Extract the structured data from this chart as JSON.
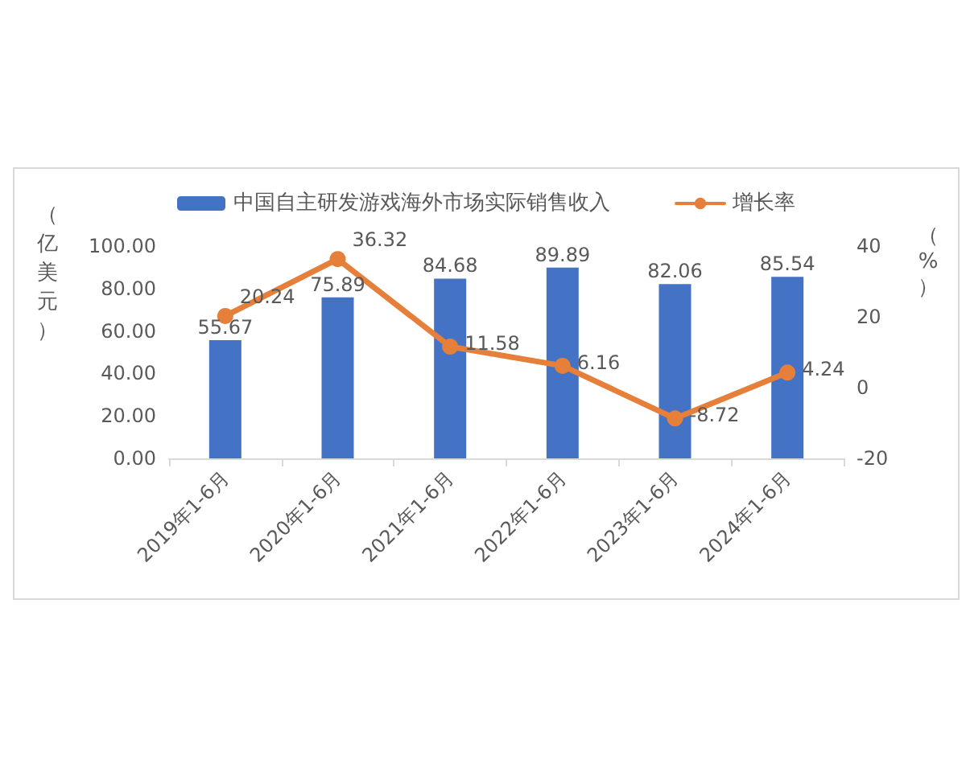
{
  "chart_data": {
    "type": "bar",
    "categories": [
      "2019年1-6月",
      "2020年1-6月",
      "2021年1-6月",
      "2022年1-6月",
      "2023年1-6月",
      "2024年1-6月"
    ],
    "series": [
      {
        "name": "中国自主研发游戏海外市场实际销售收入",
        "color": "#4472c4",
        "values": [
          55.67,
          75.89,
          84.68,
          89.89,
          82.06,
          85.54
        ]
      },
      {
        "name": "增长率",
        "type": "line",
        "axis": "y2",
        "color": "#e57f3a",
        "values": [
          20.24,
          36.32,
          11.58,
          6.16,
          -8.72,
          4.24
        ]
      }
    ],
    "ylabel": "（亿美元）",
    "y2label": "（%）",
    "ylim": [
      0,
      100
    ],
    "yticks": [
      {
        "value": 0,
        "label": "0.00"
      },
      {
        "value": 20,
        "label": "20.00"
      },
      {
        "value": 40,
        "label": "40.00"
      },
      {
        "value": 60,
        "label": "60.00"
      },
      {
        "value": 80,
        "label": "80.00"
      },
      {
        "value": 100,
        "label": "100.00"
      }
    ],
    "y2lim": [
      -20,
      40
    ],
    "y2ticks": [
      -20,
      0,
      20,
      40
    ],
    "data_labels": true,
    "legend": "top",
    "marker": "circle"
  }
}
